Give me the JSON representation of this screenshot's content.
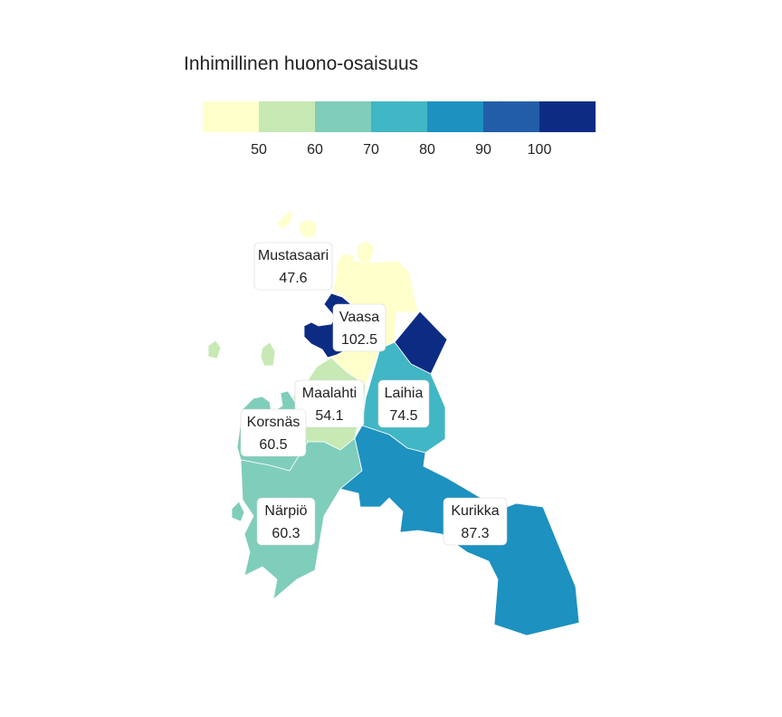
{
  "legend": {
    "title": "Inhimillinen huono-osaisuus",
    "bins": [
      {
        "color": "#ffffcc"
      },
      {
        "color": "#c7e9b4"
      },
      {
        "color": "#7fcdbb"
      },
      {
        "color": "#41b6c4"
      },
      {
        "color": "#1d91c0"
      },
      {
        "color": "#225ea8"
      },
      {
        "color": "#0c2c84"
      }
    ],
    "ticks": [
      "50",
      "60",
      "70",
      "80",
      "90",
      "100"
    ]
  },
  "regions": [
    {
      "id": "mustasaari",
      "name": "Mustasaari",
      "value": "47.6",
      "color": "#ffffcc"
    },
    {
      "id": "vaasa",
      "name": "Vaasa",
      "value": "102.5",
      "color": "#0c2c84"
    },
    {
      "id": "maalahti",
      "name": "Maalahti",
      "value": "54.1",
      "color": "#c7e9b4"
    },
    {
      "id": "laihia",
      "name": "Laihia",
      "value": "74.5",
      "color": "#41b6c4"
    },
    {
      "id": "korsnas",
      "name": "Korsnäs",
      "value": "60.5",
      "color": "#7fcdbb"
    },
    {
      "id": "narpio",
      "name": "Närpiö",
      "value": "60.3",
      "color": "#7fcdbb"
    },
    {
      "id": "kurikka",
      "name": "Kurikka",
      "value": "87.3",
      "color": "#1d91c0"
    }
  ]
}
